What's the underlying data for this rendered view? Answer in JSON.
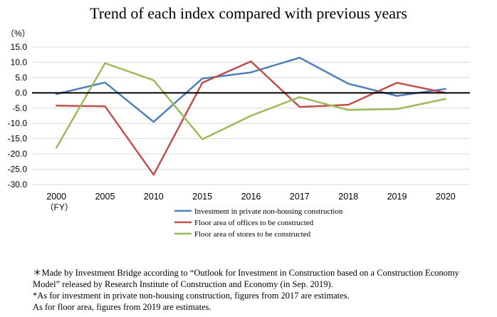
{
  "chart_data": {
    "type": "line",
    "title": "Trend of each index compared with previous years",
    "ylabel": "（%）",
    "xlabel": "",
    "x_unit_label": "（FY）",
    "categories": [
      "2000",
      "2005",
      "2010",
      "2015",
      "2016",
      "2017",
      "2018",
      "2019",
      "2020"
    ],
    "ylim": [
      -30,
      15
    ],
    "yticks": [
      "15.0",
      "10.0",
      "5.0",
      "0.0",
      "-5.0",
      "-10.0",
      "-15.0",
      "-20.0",
      "-25.0",
      "-30.0"
    ],
    "grid": true,
    "legend_position": "bottom",
    "series": [
      {
        "name": "Investment in private non-housing construction",
        "color": "#4F81BD",
        "values": [
          -0.4,
          3.4,
          -9.5,
          4.7,
          6.7,
          11.5,
          3.0,
          -1.0,
          1.3
        ]
      },
      {
        "name": "Floor area of offices to be constructed",
        "color": "#C0504D",
        "values": [
          -4.2,
          -4.4,
          -26.8,
          3.3,
          10.3,
          -4.6,
          -3.9,
          3.3,
          0.0
        ]
      },
      {
        "name": "Floor area of stores to be constructed",
        "color": "#9BBB59",
        "values": [
          -18.0,
          9.7,
          4.1,
          -15.2,
          -7.5,
          -1.4,
          -5.6,
          -5.3,
          -2.0
        ]
      }
    ]
  },
  "notes": [
    "＊Made by Investment Bridge according to “Outlook for Investment in Construction based on a Construction Economy",
    "Model” released by Research Institute of Construction and Economy (in Sep. 2019).",
    "*As for investment in private non-housing construction, figures from 2017 are estimates.",
    "As for floor area, figures from 2019 are estimates."
  ]
}
